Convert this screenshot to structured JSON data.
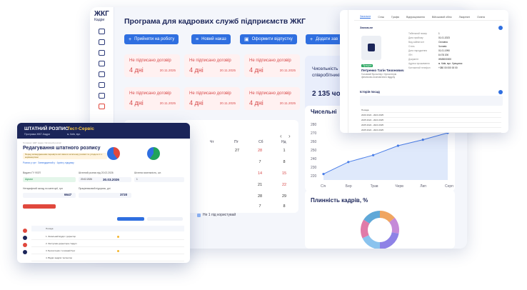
{
  "main": {
    "logo": "ЖКГ",
    "logo_sub": "Кадри",
    "title": "Програма для кадрових служб підприємств ЖКГ",
    "buttons": [
      {
        "icon": "+",
        "label": "Прийняти на роботу"
      },
      {
        "icon": "≡",
        "label": "Новий наказ"
      },
      {
        "icon": "▣",
        "label": "Оформити відпустку"
      },
      {
        "icon": "+",
        "label": "Додати зав"
      }
    ],
    "contract_cards": [
      {
        "title": "Не підписано договір",
        "days": "4 дні",
        "date": "20.11.2025"
      },
      {
        "title": "Не підписано договір",
        "days": "4 дні",
        "date": "20.11.2025"
      },
      {
        "title": "Не підписано договір",
        "days": "4 дні",
        "date": "20.11.2025"
      },
      {
        "title": "Не підписано договір",
        "days": "4 дні",
        "date": "20.11.2025"
      },
      {
        "title": "Не підписано договір",
        "days": "4 дні",
        "date": "20.11.2025"
      },
      {
        "title": "Не підписано договір",
        "days": "4 дні",
        "date": "20.11.2025"
      }
    ],
    "employees": {
      "label": "Чисельність співробітників",
      "value": "2 135 чол"
    },
    "calendar": {
      "weekdays": [
        "Чт",
        "Пт",
        "Сб",
        "Нд"
      ],
      "prev": "‹",
      "next": "›",
      "rows": [
        [
          "27",
          "28",
          "1"
        ],
        [
          "7",
          "8"
        ],
        [
          "14",
          "15"
        ],
        [
          "21",
          "22"
        ],
        [
          "28",
          "29"
        ],
        [
          "7",
          "8"
        ]
      ],
      "legend": "Не 1 під користувай"
    },
    "headcount_chart_title": "Чисельні",
    "turnover_chart_title": "Плинність кадрів, %"
  },
  "chart_data": [
    {
      "type": "line",
      "x": [
        "Січ",
        "Бер",
        "Трав",
        "Черв",
        "Лип",
        "Серп"
      ],
      "y_ticks": [
        "220",
        "230",
        "240",
        "250",
        "260",
        "270",
        "280"
      ],
      "series": [
        {
          "values": [
            222,
            236,
            244,
            255,
            262,
            270
          ]
        }
      ],
      "ylim": [
        215,
        280
      ],
      "grid": false
    },
    {
      "type": "pie",
      "values": [
        14,
        14,
        22,
        18,
        16,
        16
      ],
      "colors": [
        "#f0a560",
        "#c58ad8",
        "#8e82e6",
        "#8ac3ee",
        "#e07aa8",
        "#5fa8d8"
      ]
    }
  ],
  "employee_card": {
    "tabs": [
      "Загальне",
      "Стаж",
      "Графік",
      "Відпрацювання",
      "Військовий облік",
      "Лікарняні",
      "Освіта"
    ],
    "section": "Загальне",
    "status": "Працює",
    "name": "Петренко Тагін Тихонович",
    "position": "Головний бухгалтер / бухгалтерія фінансово-економічного відділу",
    "field_labels": [
      "Табельний номер",
      "Дата прийому",
      "Вид зайнятості",
      "Стать",
      "Дата народження",
      "ІПН",
      "Документ",
      "Адреса проживання",
      "Контактний телефон"
    ],
    "field_values": [
      "1",
      "01.01.2023",
      "Основна",
      "Чоловік",
      "01.01.1990",
      "8 478 200",
      "ЖМ5000000",
      "м. Київ, вул. Хрещатик",
      "+380 00 000 00 00"
    ],
    "positions_section": "Історія посад",
    "positions_rows": [
      "Посада",
      "2020 2024 - 2024 2025",
      "2025 2024 - 2024 2025",
      "2025 2024 - 2024 2025",
      "2025 2024 - 2024 2025",
      "2025 2024 - 2024 2025"
    ]
  },
  "staff": {
    "title": "ШТАТНИЙ РОЗПИС",
    "company": "Тест-Сервіс",
    "subtitle": "Програма ЖКГ-Кадри",
    "company_sub": "м. Київ, вул.",
    "breadcrumb": "Головна / ШКГ кадри / Штатний розпис",
    "heading": "Редагування штатного розпису",
    "warning": "Перед затвердженням перевірте всі зміни в штатному розписі та узгодьте їх з керівництвом",
    "links": "Розпис у грн  ·  Затверджений у  ·  Архів у підсумку",
    "labels": [
      "Видати ГУ ФОП",
      "Штатний розпис від 20.02.2026",
      "Штатна чисельність, шт.",
      "Нетарифний оклад по категорії, грн",
      "Працівниковий підсумок, дні"
    ],
    "fields": [
      "Шукати",
      "20.02.2026",
      "1",
      "",
      ""
    ],
    "values": [
      "30.03.2026",
      "6647",
      "3720"
    ],
    "table_header": "Посада",
    "rows": [
      "1. Загальний відділ / директор",
      "2. Заступник директора / відділ",
      "3. Бухгалтерія / головний бухг",
      "4. Відділ кадрів / інспектор"
    ]
  }
}
